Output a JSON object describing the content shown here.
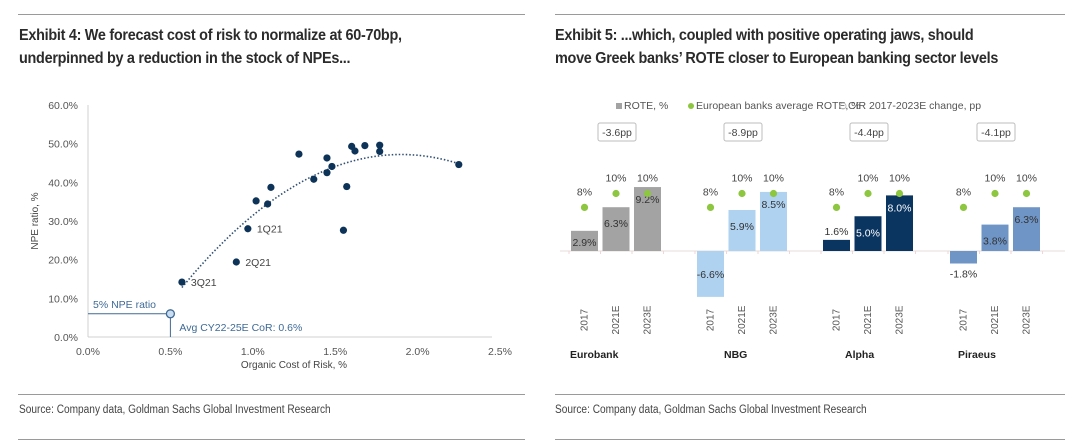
{
  "exhibits": [
    {
      "title_line1": "Exhibit 4: We forecast cost of risk to normalize at 60-70bp,",
      "title_line2": "underpinned by a reduction in the stock of NPEs...",
      "source": "Source: Company data, Goldman Sachs Global Investment Research"
    },
    {
      "title_line1": "Exhibit 5: ...which, coupled with positive operating jaws, should",
      "title_line2": "move Greek banks’ ROTE closer to European banking sector levels",
      "source": "Source: Company data, Goldman Sachs Global Investment Research"
    }
  ],
  "chart_data": [
    {
      "type": "scatter",
      "title": "Exhibit 4: We forecast cost of risk to normalize at 60-70bp, underpinned by a reduction in the stock of NPEs...",
      "xlabel": "Organic Cost of Risk, %",
      "ylabel": "NPE ratio, %",
      "xlim": [
        0,
        2.5
      ],
      "ylim": [
        0,
        60
      ],
      "xticks": [
        "0.0%",
        "0.5%",
        "1.0%",
        "1.5%",
        "2.0%",
        "2.5%"
      ],
      "yticks": [
        "0.0%",
        "10.0%",
        "20.0%",
        "30.0%",
        "40.0%",
        "50.0%",
        "60.0%"
      ],
      "points": [
        {
          "x": 0.57,
          "y": 14.2,
          "label": "3Q21"
        },
        {
          "x": 0.9,
          "y": 19.4,
          "label": "2Q21"
        },
        {
          "x": 0.97,
          "y": 28.0,
          "label": "1Q21"
        },
        {
          "x": 1.02,
          "y": 35.2,
          "label": ""
        },
        {
          "x": 1.09,
          "y": 34.4,
          "label": ""
        },
        {
          "x": 1.11,
          "y": 38.7,
          "label": ""
        },
        {
          "x": 1.28,
          "y": 47.3,
          "label": ""
        },
        {
          "x": 1.37,
          "y": 40.8,
          "label": ""
        },
        {
          "x": 1.45,
          "y": 46.3,
          "label": ""
        },
        {
          "x": 1.45,
          "y": 42.5,
          "label": ""
        },
        {
          "x": 1.48,
          "y": 44.1,
          "label": ""
        },
        {
          "x": 1.55,
          "y": 27.6,
          "label": ""
        },
        {
          "x": 1.57,
          "y": 38.9,
          "label": ""
        },
        {
          "x": 1.6,
          "y": 49.3,
          "label": ""
        },
        {
          "x": 1.62,
          "y": 48.1,
          "label": ""
        },
        {
          "x": 1.68,
          "y": 49.5,
          "label": ""
        },
        {
          "x": 1.77,
          "y": 49.6,
          "label": ""
        },
        {
          "x": 1.77,
          "y": 48.0,
          "label": ""
        },
        {
          "x": 2.25,
          "y": 44.6,
          "label": ""
        }
      ],
      "trendline": {
        "type": "polynomial-dotted",
        "x_range": [
          0.57,
          2.25
        ],
        "peak": {
          "x": 1.9,
          "y": 47.2
        }
      },
      "target_point": {
        "x": 0.5,
        "y": 6.0
      },
      "annotations": {
        "npe_line": "5% NPE ratio",
        "cor_line": "Avg CY22-25E CoR: 0.6%"
      },
      "grid": false
    },
    {
      "type": "bar",
      "title": "Exhibit 5: ...which, coupled with positive operating jaws, should move Greek banks’ ROTE closer to European banking sector levels",
      "legend": {
        "position": "top",
        "entries": [
          {
            "name": "ROTE, %",
            "marker": "square",
            "color": "#a3a3a3"
          },
          {
            "name": "European banks average ROTE, %",
            "marker": "dot",
            "color": "#8dc63f"
          },
          {
            "name": "CIR 2017-2023E change, pp",
            "marker": "hollow-circle",
            "color": "#bbbbbb"
          }
        ]
      },
      "years": [
        "2017",
        "2021E",
        "2023E"
      ],
      "groups": [
        {
          "name": "Eurobank",
          "color": "#a3a3a3",
          "rote": [
            2.9,
            6.3,
            9.2
          ],
          "rote_labels": [
            "2.9%",
            "6.3%",
            "9.2%"
          ],
          "eu_avg": [
            8,
            10,
            10
          ],
          "eu_labels": [
            "8%",
            "10%",
            "10%"
          ],
          "cir_change": "-3.6pp"
        },
        {
          "name": "NBG",
          "color": "#aed2f0",
          "rote": [
            -6.6,
            5.9,
            8.5
          ],
          "rote_labels": [
            "-6.6%",
            "5.9%",
            "8.5%"
          ],
          "eu_avg": [
            8,
            10,
            10
          ],
          "eu_labels": [
            "8%",
            "10%",
            "10%"
          ],
          "cir_change": "-8.9pp"
        },
        {
          "name": "Alpha",
          "color": "#0b3561",
          "rote": [
            1.6,
            5.0,
            8.0
          ],
          "rote_labels": [
            "1.6%",
            "5.0%",
            "8.0%"
          ],
          "eu_avg": [
            8,
            10,
            10
          ],
          "eu_labels": [
            "8%",
            "10%",
            "10%"
          ],
          "cir_change": "-4.4pp"
        },
        {
          "name": "Piraeus",
          "color": "#6f95c6",
          "rote": [
            -1.8,
            3.8,
            6.3
          ],
          "rote_labels": [
            "-1.8%",
            "3.8%",
            "6.3%"
          ],
          "eu_avg": [
            8,
            10,
            10
          ],
          "eu_labels": [
            "8%",
            "10%",
            "10%"
          ],
          "cir_change": "-4.1pp"
        }
      ],
      "grid": false
    }
  ],
  "colors": {
    "scatter_point": "#0d3358",
    "annotation": "#3e6a96",
    "green": "#8dc63f",
    "axis": "#d0d0d0"
  }
}
